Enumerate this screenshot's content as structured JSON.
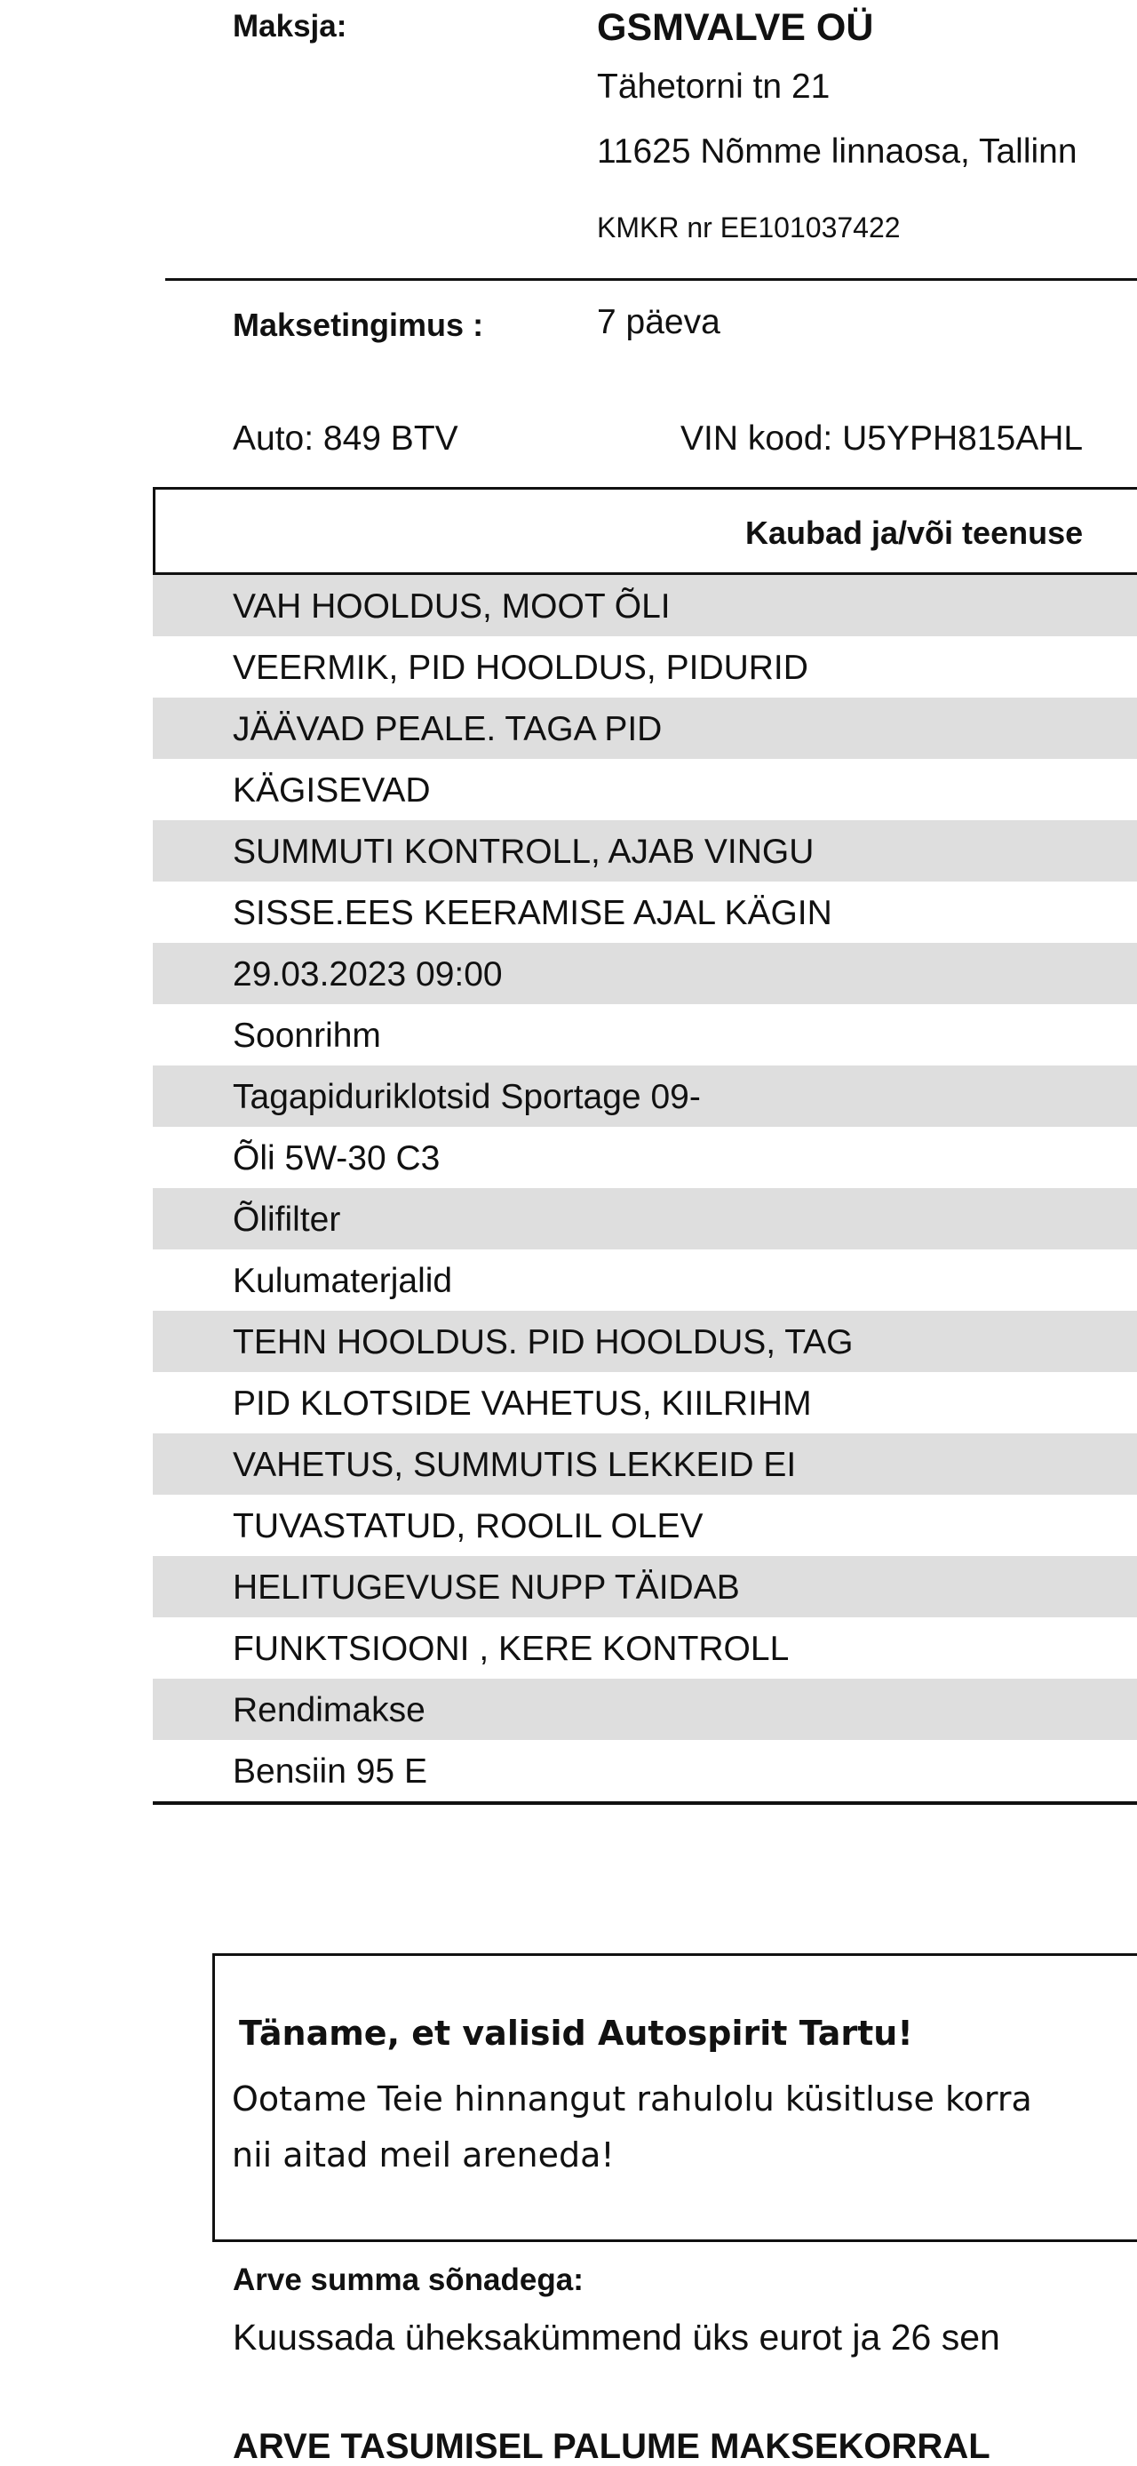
{
  "payer": {
    "label": "Maksja:",
    "name": "GSMVALVE OÜ",
    "address_1": "Tähetorni tn 21",
    "address_2": "11625 Nõmme linnaosa, Tallinn",
    "vat": "KMKR nr EE101037422"
  },
  "terms": {
    "label": "Maksetingimus :",
    "value": "7 päeva"
  },
  "vehicle": {
    "car": "Auto: 849 BTV",
    "vin": "VIN kood: U5YPH815AHL"
  },
  "table": {
    "header": "Kaubad ja/või teenuse",
    "rows": [
      "VAH HOOLDUS, MOOT ÕLI",
      "VEERMIK, PID HOOLDUS, PIDURID",
      "JÄÄVAD PEALE. TAGA PID",
      "KÄGISEVAD",
      "SUMMUTI KONTROLL, AJAB VINGU",
      "SISSE.EES KEERAMISE AJAL KÄGIN",
      "29.03.2023 09:00",
      "Soonrihm",
      "Tagapiduriklotsid Sportage 09-",
      "Õli 5W-30 C3",
      "Õlifilter",
      "Kulumaterjalid",
      "TEHN HOOLDUS. PID HOOLDUS, TAG",
      "PID KLOTSIDE VAHETUS, KIILRIHM",
      "VAHETUS, SUMMUTIS LEKKEID EI",
      "TUVASTATUD, ROOLIL OLEV",
      "HELITUGEVUSE NUPP TÄIDAB",
      "FUNKTSIOONI , KERE KONTROLL",
      "Rendimakse",
      "Bensiin 95 E"
    ]
  },
  "note": {
    "title": "Täname, et valisid Autospirit Tartu!",
    "line_1": "Ootame Teie hinnangut rahulolu küsitluse korra",
    "line_2": "nii aitad meil areneda!"
  },
  "amount": {
    "label": "Arve summa sõnadega:",
    "text": "Kuussada üheksakümmend üks eurot ja 26 sen"
  },
  "footer": "ARVE TASUMISEL PALUME MAKSEKORRAL"
}
